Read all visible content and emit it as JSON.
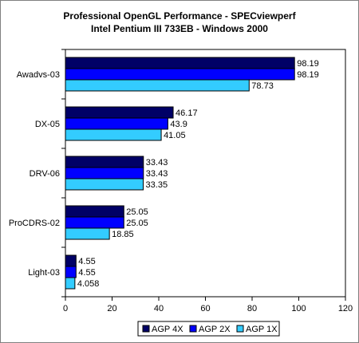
{
  "chart_data": {
    "type": "bar",
    "orientation": "horizontal",
    "title": [
      "Professional OpenGL Performance - SPECviewperf",
      "Intel Pentium III 733EB - Windows 2000"
    ],
    "categories": [
      "Awadvs-03",
      "DX-05",
      "DRV-06",
      "ProCDRS-02",
      "Light-03"
    ],
    "series": [
      {
        "name": "AGP 4X",
        "color": "#000066",
        "values": [
          98.19,
          46.17,
          33.43,
          25.05,
          4.55
        ],
        "labels": [
          "98.19",
          "46.17",
          "33.43",
          "25.05",
          "4.55"
        ]
      },
      {
        "name": "AGP 2X",
        "color": "#0000ff",
        "values": [
          98.19,
          43.9,
          33.43,
          25.05,
          4.55
        ],
        "labels": [
          "98.19",
          "43.9",
          "33.43",
          "25.05",
          "4.55"
        ]
      },
      {
        "name": "AGP 1X",
        "color": "#33ccff",
        "values": [
          78.73,
          41.05,
          33.35,
          18.85,
          4.058
        ],
        "labels": [
          "78.73",
          "41.05",
          "33.35",
          "18.85",
          "4.058"
        ]
      }
    ],
    "xlim": [
      0,
      120
    ],
    "xticks": [
      "0",
      "20",
      "40",
      "60",
      "80",
      "100",
      "120"
    ],
    "xlabel": "",
    "ylabel": "",
    "grid": false,
    "legend_position": "bottom",
    "plot_background": "#ffffff",
    "bar_outline": "#000000"
  }
}
